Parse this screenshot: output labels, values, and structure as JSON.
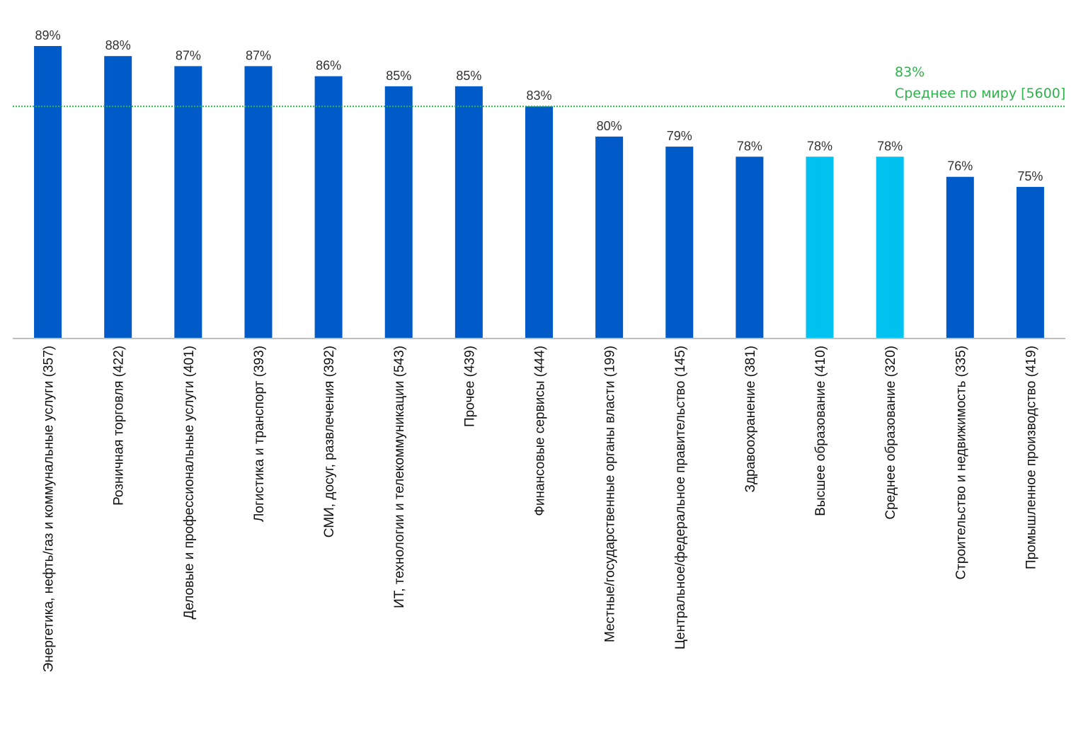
{
  "chart_data": {
    "type": "bar",
    "title": "",
    "xlabel": "",
    "ylabel": "",
    "ylim": [
      60,
      90
    ],
    "grid": false,
    "categories": [
      "Энергетика, нефть/газ и коммунальные услуги (357)",
      "Розничная торговля (422)",
      "Деловые и профессиональные услуги (401)",
      "Логистика и транспорт (393)",
      "СМИ, досуг, развлечения (392)",
      "ИТ, технологии и телекоммуникации (543)",
      "Прочее (439)",
      "Финансовые сервисы (444)",
      "Местные/государственные органы власти (199)",
      "Центральное/федеральное правительство (145)",
      "Здравоохранение (381)",
      "Высшее образование (410)",
      "Среднее образование (320)",
      "Строительство и недвижимость (335)",
      "Промышленное производство (419)"
    ],
    "values": [
      89,
      88,
      87,
      87,
      86,
      85,
      85,
      83,
      80,
      79,
      78,
      78,
      78,
      76,
      75
    ],
    "value_labels": [
      "89%",
      "88%",
      "87%",
      "87%",
      "86%",
      "85%",
      "85%",
      "83%",
      "80%",
      "79%",
      "78%",
      "78%",
      "78%",
      "76%",
      "75%"
    ],
    "bar_colors": [
      "#005bc8",
      "#005bc8",
      "#005bc8",
      "#005bc8",
      "#005bc8",
      "#005bc8",
      "#005bc8",
      "#005bc8",
      "#005bc8",
      "#005bc8",
      "#005bc8",
      "#00c2f0",
      "#00c2f0",
      "#005bc8",
      "#005bc8"
    ],
    "reference_line": {
      "value": 83,
      "value_label": "83%",
      "label": "Среднее по миру [5600]",
      "color": "#2db34a"
    }
  },
  "colors": {
    "primary_bar": "#005bc8",
    "highlight_bar": "#00c2f0",
    "axis": "#bfbfbf",
    "average_line": "#2db34a"
  }
}
